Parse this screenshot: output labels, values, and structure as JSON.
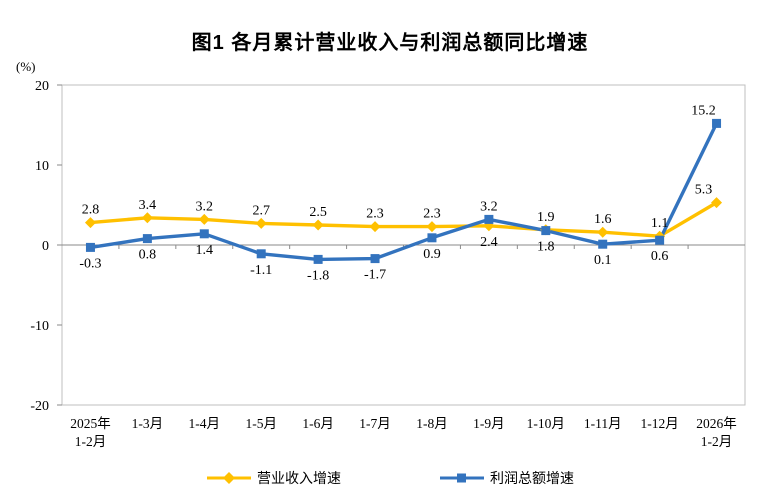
{
  "title": "图1 各月累计营业收入与利润总额同比增速",
  "y_axis_unit": "(%)",
  "chart_data": {
    "type": "line",
    "categories": [
      "2025年\n1-2月",
      "1-3月",
      "1-4月",
      "1-5月",
      "1-6月",
      "1-7月",
      "1-8月",
      "1-9月",
      "1-10月",
      "1-11月",
      "1-12月",
      "2026年\n1-2月"
    ],
    "series": [
      {
        "name": "营业收入增速",
        "color": "#FFC000",
        "marker": "diamond",
        "values": [
          2.8,
          3.4,
          3.2,
          2.7,
          2.5,
          2.3,
          2.3,
          2.4,
          1.9,
          1.6,
          1.1,
          5.3
        ],
        "label_position": [
          "above",
          "above",
          "above",
          "above",
          "above",
          "above",
          "above",
          "below",
          "above",
          "above",
          "above",
          "above"
        ]
      },
      {
        "name": "利润总额增速",
        "color": "#3373BE",
        "marker": "square",
        "values": [
          -0.3,
          0.8,
          1.4,
          -1.1,
          -1.8,
          -1.7,
          0.9,
          3.2,
          1.8,
          0.1,
          0.6,
          15.2
        ],
        "label_position": [
          "below",
          "below",
          "below",
          "below",
          "below",
          "below",
          "below",
          "above",
          "below",
          "below",
          "below",
          "above"
        ]
      }
    ],
    "ylim": [
      -20,
      20
    ],
    "yticks": [
      20,
      10,
      0,
      -10,
      -20
    ],
    "grid": false,
    "legend_position": "bottom",
    "axis_color": "#bfbfbf",
    "zero_line_color": "#8a8a8a"
  }
}
